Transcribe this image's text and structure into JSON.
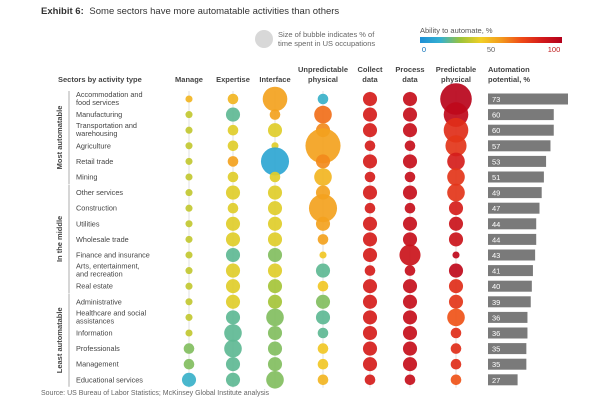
{
  "header": {
    "exhibit": "Exhibit 6:",
    "title": "Some sectors have more automatable activities than others"
  },
  "legend": {
    "size_line1": "Size of bubble indicates % of",
    "size_line2": "time spent in US occupations",
    "color_title": "Ability to automate, %",
    "ticks": [
      "0",
      "50",
      "100"
    ],
    "gradient": [
      "#1d8fd6",
      "#35b0d0",
      "#9cc33a",
      "#f1cf26",
      "#f39a1d",
      "#ef4b17",
      "#d41b1b",
      "#b3001b"
    ]
  },
  "source": "Source: US Bureau of Labor Statistics; McKinsey Global Institute analysis",
  "chart_data": {
    "type": "bubble-matrix",
    "row_header": "Sectors by activity type",
    "value_header": [
      "Automation",
      "potential, %"
    ],
    "columns": [
      [
        "Manage"
      ],
      [
        "Expertise"
      ],
      [
        "Interface"
      ],
      [
        "Unpredictable",
        "physical"
      ],
      [
        "Collect",
        "data"
      ],
      [
        "Process",
        "data"
      ],
      [
        "Predictable",
        "physical"
      ]
    ],
    "groups": [
      {
        "label": "Most automatable",
        "from": 0,
        "to": 5
      },
      {
        "label": "In the middle",
        "from": 6,
        "to": 12
      },
      {
        "label": "Least automatable",
        "from": 13,
        "to": 18
      }
    ],
    "sectors": [
      {
        "name": [
          "Accommodation and",
          "food services"
        ],
        "potential": 73,
        "sizes": [
          1,
          2,
          6,
          2,
          3,
          3,
          8
        ],
        "colors": [
          50,
          50,
          55,
          15,
          85,
          92,
          98
        ]
      },
      {
        "name": [
          "Manufacturing"
        ],
        "potential": 60,
        "sizes": [
          1,
          3,
          2,
          4,
          3,
          3,
          6
        ],
        "colors": [
          35,
          20,
          55,
          65,
          85,
          92,
          95
        ]
      },
      {
        "name": [
          "Transportation and",
          "warehousing"
        ],
        "potential": 60,
        "sizes": [
          1,
          2,
          3,
          3,
          3,
          3,
          6
        ],
        "colors": [
          35,
          40,
          40,
          60,
          85,
          92,
          80
        ]
      },
      {
        "name": [
          "Agriculture"
        ],
        "potential": 57,
        "sizes": [
          1,
          2,
          1,
          9,
          2,
          2,
          5
        ],
        "colors": [
          35,
          40,
          40,
          55,
          85,
          92,
          78
        ]
      },
      {
        "name": [
          "Retail trade"
        ],
        "potential": 53,
        "sizes": [
          1,
          2,
          7,
          3,
          3,
          3,
          4
        ],
        "colors": [
          35,
          55,
          10,
          60,
          85,
          92,
          85
        ]
      },
      {
        "name": [
          "Mining"
        ],
        "potential": 51,
        "sizes": [
          1,
          2,
          2,
          4,
          2,
          2,
          4
        ],
        "colors": [
          35,
          40,
          40,
          50,
          85,
          92,
          78
        ]
      },
      {
        "name": [
          "Other services"
        ],
        "potential": 49,
        "sizes": [
          1,
          3,
          3,
          3,
          3,
          3,
          4
        ],
        "colors": [
          35,
          40,
          40,
          55,
          85,
          92,
          78
        ]
      },
      {
        "name": [
          "Construction"
        ],
        "potential": 47,
        "sizes": [
          1,
          2,
          3,
          7,
          2,
          2,
          3
        ],
        "colors": [
          35,
          40,
          40,
          55,
          85,
          92,
          85
        ]
      },
      {
        "name": [
          "Utilities"
        ],
        "potential": 44,
        "sizes": [
          1,
          3,
          3,
          3,
          3,
          3,
          3
        ],
        "colors": [
          35,
          40,
          40,
          55,
          85,
          92,
          90
        ]
      },
      {
        "name": [
          "Wholesale trade"
        ],
        "potential": 44,
        "sizes": [
          1,
          3,
          3,
          2,
          3,
          3,
          3
        ],
        "colors": [
          35,
          40,
          40,
          55,
          85,
          92,
          90
        ]
      },
      {
        "name": [
          "Finance and insurance"
        ],
        "potential": 43,
        "sizes": [
          1,
          3,
          3,
          1,
          3,
          5,
          1
        ],
        "colors": [
          35,
          20,
          25,
          45,
          85,
          90,
          95
        ]
      },
      {
        "name": [
          "Arts, entertainment,",
          "and recreation"
        ],
        "potential": 41,
        "sizes": [
          1,
          3,
          3,
          3,
          2,
          2,
          3
        ],
        "colors": [
          35,
          40,
          40,
          20,
          85,
          92,
          95
        ]
      },
      {
        "name": [
          "Real estate"
        ],
        "potential": 40,
        "sizes": [
          1,
          3,
          3,
          2,
          3,
          3,
          3
        ],
        "colors": [
          35,
          40,
          30,
          45,
          85,
          92,
          80
        ]
      },
      {
        "name": [
          "Administrative"
        ],
        "potential": 39,
        "sizes": [
          1,
          3,
          3,
          3,
          3,
          3,
          3
        ],
        "colors": [
          35,
          40,
          30,
          25,
          85,
          92,
          78
        ]
      },
      {
        "name": [
          "Healthcare and social",
          "assistances"
        ],
        "potential": 36,
        "sizes": [
          1,
          3,
          4,
          3,
          3,
          3,
          4
        ],
        "colors": [
          35,
          20,
          25,
          20,
          85,
          92,
          70
        ]
      },
      {
        "name": [
          "Information"
        ],
        "potential": 36,
        "sizes": [
          1,
          4,
          3,
          2,
          3,
          3,
          2
        ],
        "colors": [
          35,
          20,
          25,
          20,
          85,
          92,
          80
        ]
      },
      {
        "name": [
          "Professionals"
        ],
        "potential": 35,
        "sizes": [
          2,
          4,
          3,
          2,
          3,
          3,
          2
        ],
        "colors": [
          25,
          20,
          25,
          45,
          85,
          92,
          80
        ]
      },
      {
        "name": [
          "Management"
        ],
        "potential": 35,
        "sizes": [
          2,
          3,
          3,
          2,
          3,
          3,
          2
        ],
        "colors": [
          25,
          20,
          25,
          45,
          85,
          92,
          80
        ]
      },
      {
        "name": [
          "Educational services"
        ],
        "potential": 27,
        "sizes": [
          3,
          3,
          4,
          2,
          2,
          2,
          2
        ],
        "colors": [
          15,
          20,
          25,
          50,
          85,
          92,
          70
        ]
      }
    ]
  }
}
